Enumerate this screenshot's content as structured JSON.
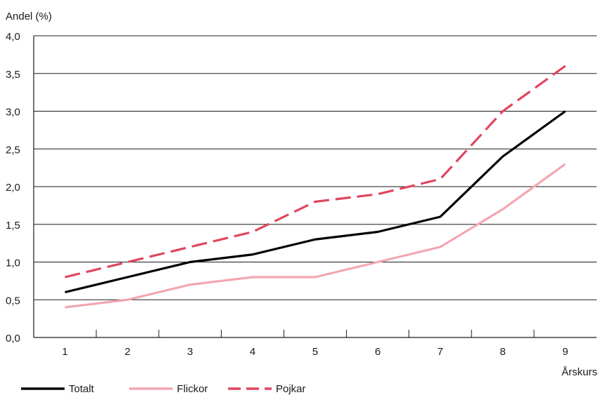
{
  "chart_data": {
    "type": "line",
    "title": "",
    "ylabel": "Andel (%)",
    "xlabel": "Årskurs",
    "x": [
      1,
      2,
      3,
      4,
      5,
      6,
      7,
      8,
      9
    ],
    "ylim": [
      0,
      4
    ],
    "yticks": [
      "0,0",
      "0,5",
      "1,0",
      "1,5",
      "2,0",
      "2,5",
      "3,0",
      "3,5",
      "4,0"
    ],
    "grid": true,
    "legend_position": "bottom-left",
    "series": [
      {
        "name": "Totalt",
        "color": "#000000",
        "dash": "solid",
        "values": [
          0.6,
          0.8,
          1.0,
          1.1,
          1.3,
          1.4,
          1.6,
          2.4,
          3.0
        ]
      },
      {
        "name": "Flickor",
        "color": "#f2a7b0",
        "dash": "solid",
        "values": [
          0.4,
          0.5,
          0.7,
          0.8,
          0.8,
          1.0,
          1.2,
          1.7,
          2.3
        ]
      },
      {
        "name": "Pojkar",
        "color": "#e0465e",
        "dash": "dashed",
        "values": [
          0.8,
          1.0,
          1.2,
          1.4,
          1.8,
          1.9,
          2.1,
          3.0,
          3.6
        ]
      }
    ]
  }
}
